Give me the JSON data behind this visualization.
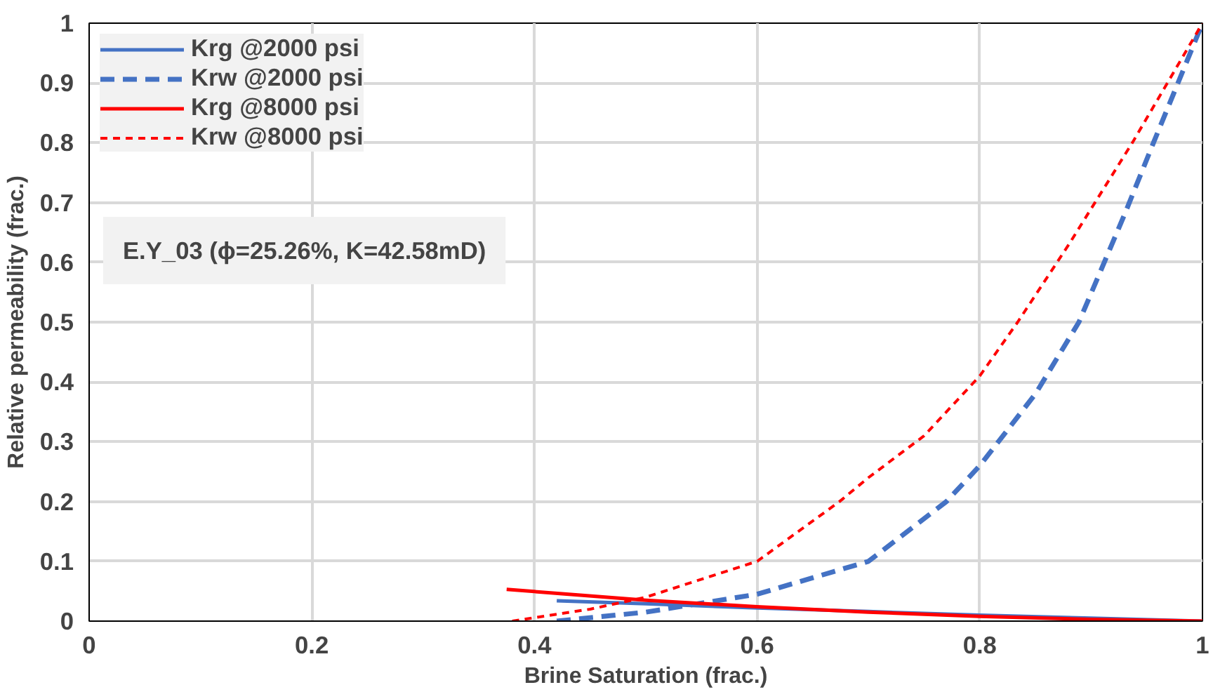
{
  "chart_data": {
    "type": "line",
    "xlabel": "Brine Saturation (frac.)",
    "ylabel": "Relative permeability (frac.)",
    "xlim": [
      0,
      1
    ],
    "ylim": [
      0,
      1
    ],
    "xticks": [
      0,
      0.2,
      0.4,
      0.6,
      0.8,
      1
    ],
    "yticks": [
      0,
      0.1,
      0.2,
      0.3,
      0.4,
      0.5,
      0.6,
      0.7,
      0.8,
      0.9,
      1
    ],
    "grid": true,
    "legend": "top left",
    "marker": "none",
    "annotations": [
      "E.Y_03 (ϕ=25.26%, K=42.58mD)"
    ],
    "series": [
      {
        "name": "Krg @2000 psi",
        "color": "#4472c4",
        "line_style": "solid",
        "x": [
          0.42,
          0.5,
          0.6,
          0.7,
          0.8,
          0.9,
          1
        ],
        "values": [
          0.034,
          0.029,
          0.022,
          0.016,
          0.01,
          0.005,
          0
        ]
      },
      {
        "name": "Krw @2000 psi",
        "color": "#4472c4",
        "line_style": "dashed",
        "x": [
          0.42,
          0.5,
          0.6,
          0.7,
          0.77,
          0.8,
          0.85,
          0.889,
          0.93,
          0.956,
          1
        ],
        "values": [
          0,
          0.015,
          0.045,
          0.1,
          0.2,
          0.26,
          0.38,
          0.5,
          0.68,
          0.8,
          1
        ]
      },
      {
        "name": "Krg @8000 psi",
        "color": "#ff0000",
        "line_style": "solid",
        "x": [
          0.375,
          0.5,
          0.6,
          0.7,
          0.8,
          0.9,
          1
        ],
        "values": [
          0.053,
          0.035,
          0.024,
          0.015,
          0.008,
          0.003,
          0
        ]
      },
      {
        "name": "Krw @8000 psi",
        "color": "#ff0000",
        "line_style": "dotted",
        "x": [
          0.38,
          0.45,
          0.5,
          0.6,
          0.674,
          0.7,
          0.75,
          0.8,
          0.834,
          0.88,
          0.937,
          1
        ],
        "values": [
          0,
          0.02,
          0.04,
          0.1,
          0.2,
          0.24,
          0.31,
          0.41,
          0.5,
          0.63,
          0.8,
          1
        ]
      }
    ]
  }
}
